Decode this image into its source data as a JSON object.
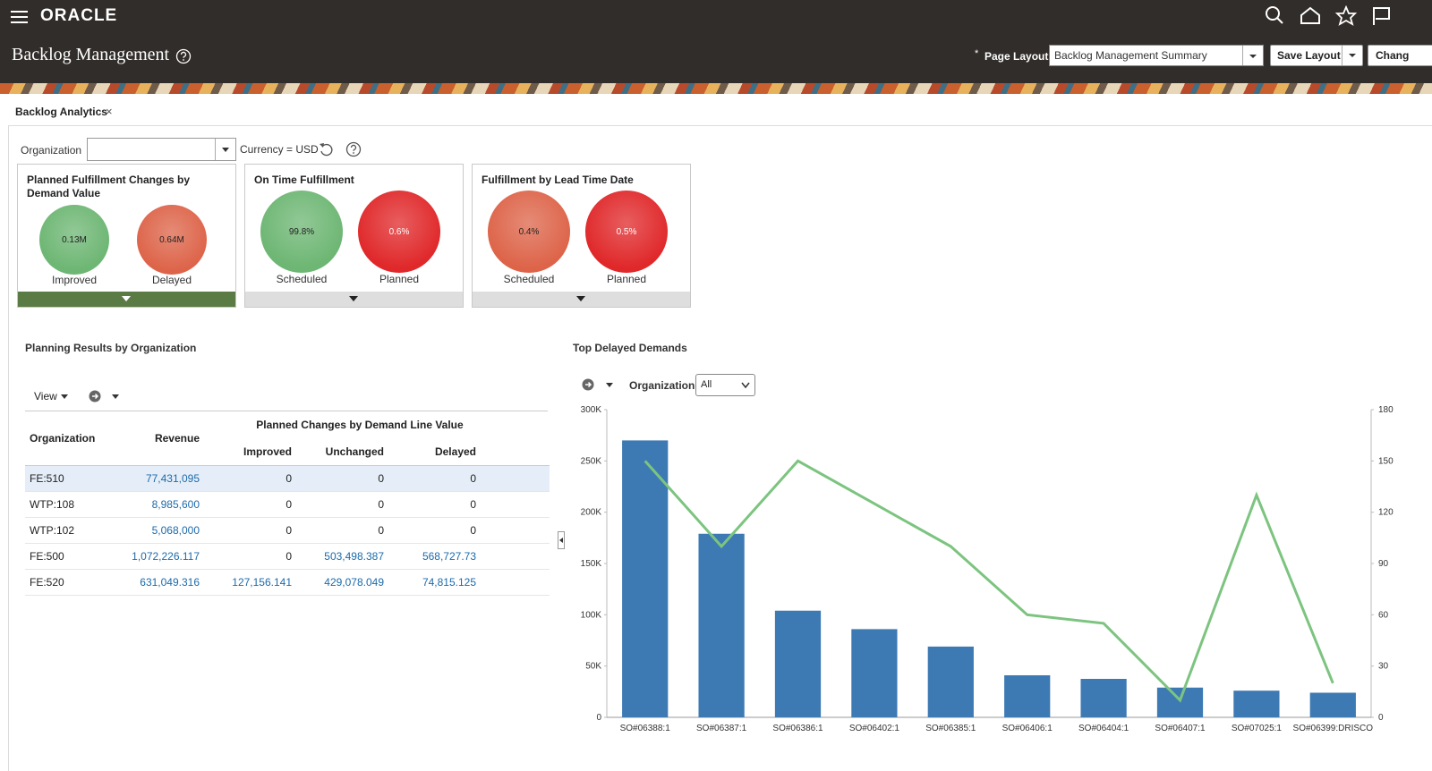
{
  "header": {
    "brand": "ORACLE",
    "title": "Backlog Management",
    "required_marker": "*",
    "page_layout_label": "Page Layout",
    "page_layout_value": "Backlog Management Summary",
    "save_layout": "Save Layout",
    "change_button": "Chang"
  },
  "tab": {
    "label": "Backlog Analytics",
    "close": "×"
  },
  "filters": {
    "organization_label": "Organization",
    "currency": "Currency = USD"
  },
  "tiles": [
    {
      "title": "Planned Fulfillment Changes by Demand Value",
      "footer_color": "#5b7b45",
      "items": [
        {
          "value_label": "0.13M",
          "label": "Improved",
          "color": "#6db673"
        },
        {
          "value_label": "0.64M",
          "label": "Delayed",
          "color": "#dd6449"
        }
      ]
    },
    {
      "title": "On Time Fulfillment",
      "footer_color": "#dedede",
      "items": [
        {
          "value_label": "99.8%",
          "label": "Scheduled",
          "color": "#6db673"
        },
        {
          "value_label": "0.6%",
          "label": "Planned",
          "color": "#e0282a"
        }
      ]
    },
    {
      "title": "Fulfillment by Lead Time Date",
      "footer_color": "#dedede",
      "items": [
        {
          "value_label": "0.4%",
          "label": "Scheduled",
          "color": "#dd6449"
        },
        {
          "value_label": "0.5%",
          "label": "Planned",
          "color": "#e0282a"
        }
      ]
    }
  ],
  "planning": {
    "title": "Planning Results by Organization",
    "view_menu": "View",
    "table": {
      "columns": [
        "Organization",
        "Revenue"
      ],
      "group_header": "Planned Changes by Demand Line Value",
      "group_columns": [
        "Improved",
        "Unchanged",
        "Delayed"
      ],
      "rows": [
        [
          "FE:510",
          "77,431,095",
          "0",
          "0",
          "0"
        ],
        [
          "WTP:108",
          "8,985,600",
          "0",
          "0",
          "0"
        ],
        [
          "WTP:102",
          "5,068,000",
          "0",
          "0",
          "0"
        ],
        [
          "FE:500",
          "1,072,226.117",
          "0",
          "503,498.387",
          "568,727.73"
        ],
        [
          "FE:520",
          "631,049.316",
          "127,156.141",
          "429,078.049",
          "74,815.125"
        ]
      ]
    }
  },
  "delayed": {
    "title": "Top Delayed Demands",
    "organization_label": "Organization",
    "organization_value": "All"
  },
  "chart_data": {
    "type": "bar",
    "categories": [
      "SO#06388:1",
      "SO#06387:1",
      "SO#06386:1",
      "SO#06402:1",
      "SO#06385:1",
      "SO#06406:1",
      "SO#06404:1",
      "SO#06407:1",
      "SO#07025:1",
      "SO#06399:DRISCO"
    ],
    "series": [
      {
        "type": "bar",
        "color": "#3d7ab3",
        "values": [
          270000,
          179000,
          104000,
          86000,
          69000,
          41000,
          37500,
          29000,
          26000,
          24000
        ]
      },
      {
        "type": "line",
        "axis": "y2",
        "color": "#7cc47f",
        "values": [
          150,
          100,
          150,
          125,
          100,
          60,
          55,
          10,
          130,
          20
        ]
      }
    ],
    "ylim": [
      0,
      300000
    ],
    "yticks": [
      0,
      {
        "value": 50000,
        "label": "50K"
      },
      {
        "value": 100000,
        "label": "100K"
      },
      {
        "value": 150000,
        "label": "150K"
      },
      {
        "value": 200000,
        "label": "200K"
      },
      {
        "value": 250000,
        "label": "250K"
      },
      {
        "value": 300000,
        "label": "300K"
      }
    ],
    "y2lim": [
      0,
      180
    ],
    "y2ticks": [
      0,
      30,
      60,
      90,
      120,
      150,
      180
    ],
    "grid": false
  }
}
